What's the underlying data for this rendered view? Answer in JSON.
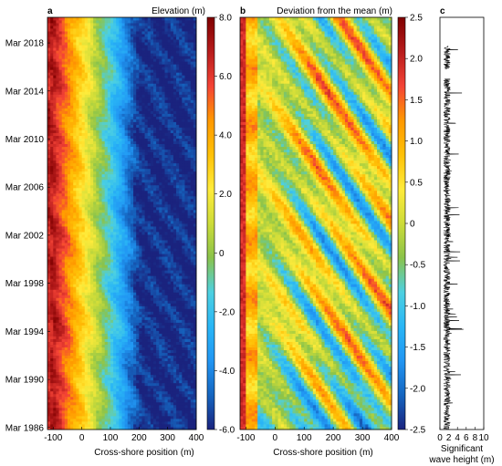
{
  "chart_data": [
    {
      "panel_label": "a",
      "type": "heatmap",
      "title": "Elevation (m)",
      "xlabel": "Cross-shore position (m)",
      "ylabel": "",
      "xlim": [
        -120,
        400
      ],
      "x_ticks": [
        -100,
        0,
        100,
        200,
        300,
        400
      ],
      "y_tick_labels": [
        "Mar 1986",
        "Mar 1990",
        "Mar 1994",
        "Mar 1998",
        "Mar 2002",
        "Mar 2006",
        "Mar 2010",
        "Mar 2014",
        "Mar 2018"
      ],
      "y_range_years": [
        1986,
        2020.3
      ],
      "colorbar": {
        "range": [
          -6.0,
          8.0
        ],
        "tick_values": [
          -6.0,
          -4.0,
          -2.0,
          0,
          2.0,
          4.0,
          6.0,
          8.0
        ],
        "tick_labels": [
          "-6.0",
          "-4.0",
          "-2.0",
          "0",
          "2.0",
          "4.0",
          "6.0",
          "8.0"
        ],
        "colormap": [
          "#1a237e",
          "#1565c0",
          "#2196f3",
          "#29b6f6",
          "#4dd0e1",
          "#8bc34a",
          "#cddc39",
          "#ffeb3b",
          "#ffc107",
          "#ff9800",
          "#f44336",
          "#b71c1c",
          "#7f0000"
        ]
      }
    },
    {
      "panel_label": "b",
      "type": "heatmap",
      "title": "Deviation from the mean (m)",
      "xlabel": "Cross-shore position (m)",
      "ylabel": "",
      "xlim": [
        -120,
        400
      ],
      "x_ticks": [
        -100,
        0,
        100,
        200,
        300,
        400
      ],
      "y_range_years": [
        1986,
        2020.3
      ],
      "colorbar": {
        "range": [
          -2.5,
          2.5
        ],
        "tick_values": [
          -2.5,
          -2.0,
          -1.5,
          -1.0,
          -0.5,
          0,
          0.5,
          1.0,
          1.5,
          2.0,
          2.5
        ],
        "tick_labels": [
          "-2.5",
          "-2.0",
          "-1.5",
          "-1.0",
          "-0.5",
          "0",
          "0.5",
          "1.0",
          "1.5",
          "2.0",
          "2.5"
        ],
        "colormap": [
          "#1a237e",
          "#1565c0",
          "#2196f3",
          "#29b6f6",
          "#4dd0e1",
          "#8bc34a",
          "#cddc39",
          "#ffeb3b",
          "#ffc107",
          "#ff9800",
          "#f44336",
          "#b71c1c",
          "#7f0000"
        ]
      }
    },
    {
      "panel_label": "c",
      "type": "line",
      "title": "",
      "xlabel": "Significant wave height (m)",
      "xlabel_lines": [
        "Significant",
        "wave height (m)"
      ],
      "ylabel": "",
      "xlim": [
        0,
        10
      ],
      "x_ticks": [
        0,
        2,
        4,
        6,
        8,
        10
      ],
      "y_range_years": [
        1986,
        2020.3
      ],
      "gap_years": [
        2015.2,
        2016.0
      ]
    }
  ]
}
